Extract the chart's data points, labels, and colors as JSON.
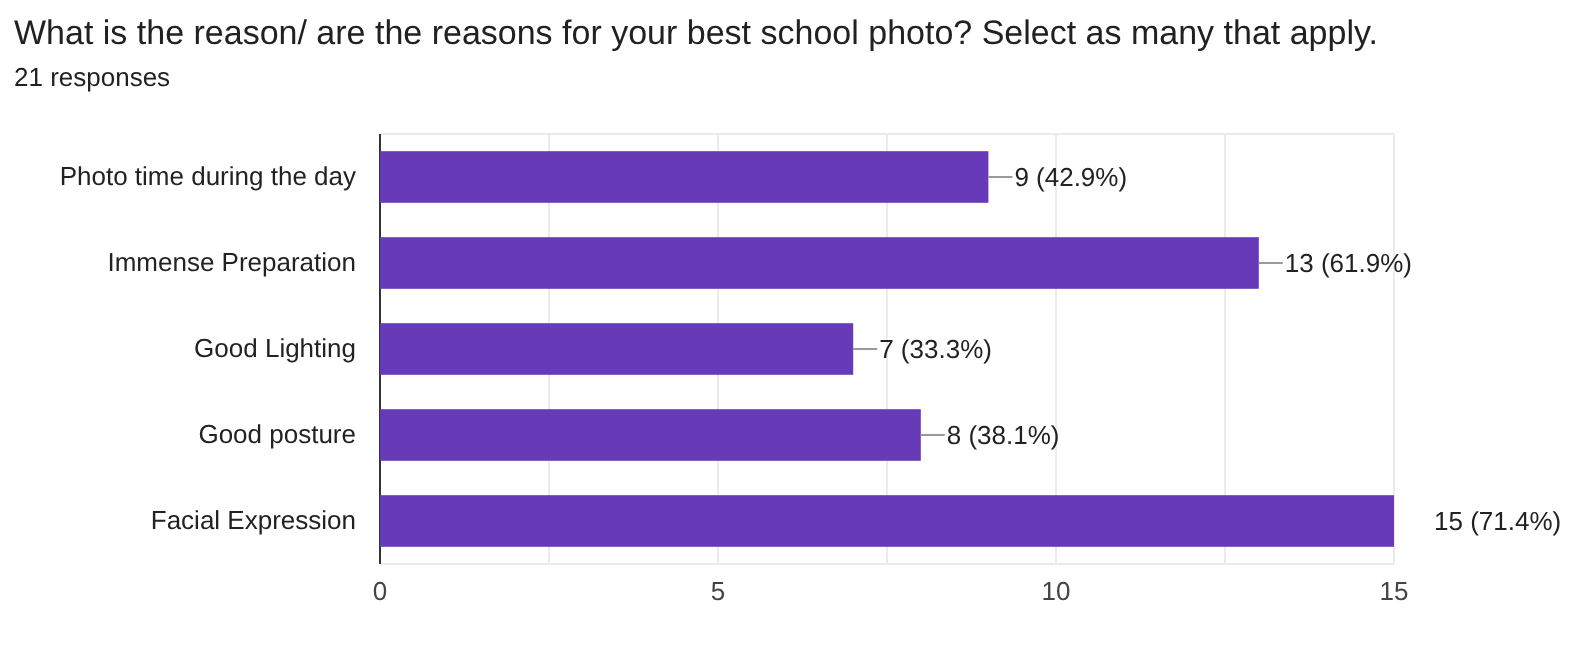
{
  "chart_data": {
    "type": "bar",
    "orientation": "horizontal",
    "title": "What is the reason/ are the reasons for your best school photo?  Select as many that apply.",
    "subtitle": "21 responses",
    "categories": [
      "Photo time during the day",
      "Immense Preparation",
      "Good Lighting",
      "Good posture",
      "Facial Expression"
    ],
    "values": [
      9,
      13,
      7,
      8,
      15
    ],
    "color": "#673ab7",
    "value_labels": [
      "9 (42.9%)",
      "13 (61.9%)",
      "7 (33.3%)",
      "8 (38.1%)",
      "15 (71.4%)"
    ],
    "xlim": [
      0,
      15
    ],
    "xticks": [
      0,
      {
        "value": 2.5,
        "label": null
      },
      5,
      {
        "value": 7.5,
        "label": null
      },
      10,
      {
        "value": 12.5,
        "label": null
      },
      15
    ],
    "grid": true
  }
}
